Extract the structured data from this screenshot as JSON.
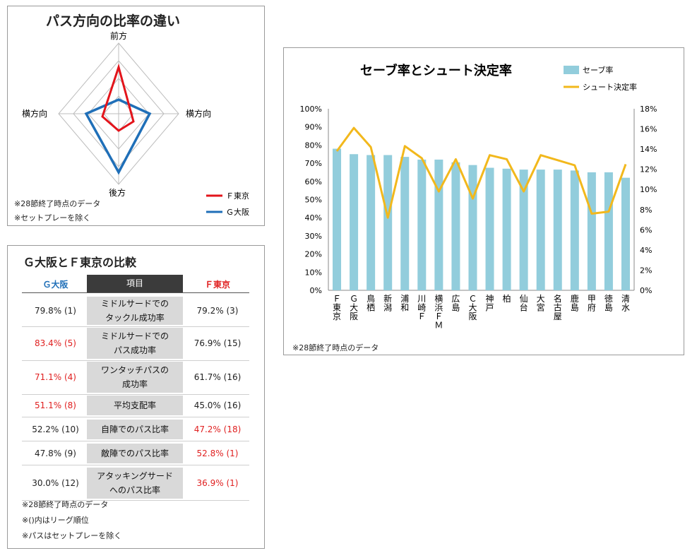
{
  "radar": {
    "title": "パス方向の比率の違い",
    "axes": [
      "前方",
      "横方向",
      "後方",
      "横方向"
    ],
    "notes": [
      "※28節終了時点のデータ",
      "※セットプレーを除く"
    ],
    "legend": [
      "Ｆ東京",
      "Ｇ大阪"
    ],
    "colors": {
      "fc_tokyo": "#e3141b",
      "g_osaka": "#1f6fb8"
    }
  },
  "compare": {
    "title": "Ｇ大阪とＦ東京の比較",
    "header": {
      "left": "Ｇ大阪",
      "center": "項目",
      "right": "Ｆ東京"
    },
    "rows": [
      {
        "left": "79.8% (1)",
        "item": "ミドルサードでの\nタックル成功率",
        "right": "79.2% (3)",
        "left_red": false,
        "right_red": false
      },
      {
        "left": "83.4% (5)",
        "item": "ミドルサードでの\nパス成功率",
        "right": "76.9% (15)",
        "left_red": true,
        "right_red": false
      },
      {
        "left": "71.1% (4)",
        "item": "ワンタッチパスの\n成功率",
        "right": "61.7% (16)",
        "left_red": true,
        "right_red": false
      },
      {
        "left": "51.1% (8)",
        "item": "平均支配率",
        "right": "45.0% (16)",
        "left_red": true,
        "right_red": false
      },
      {
        "left": "52.2% (10)",
        "item": "自陣でのパス比率",
        "right": "47.2% (18)",
        "left_red": false,
        "right_red": true
      },
      {
        "left": "47.8% (9)",
        "item": "敵陣でのパス比率",
        "right": "52.8% (1)",
        "left_red": false,
        "right_red": true
      },
      {
        "left": "30.0% (12)",
        "item": "アタッキングサード\nへのパス比率",
        "right": "36.9% (1)",
        "left_red": false,
        "right_red": true
      }
    ],
    "notes": [
      "※28節終了時点のデータ",
      "※()内はリーグ順位",
      "※パスはセットプレーを除く"
    ]
  },
  "chart_data": {
    "type": "bar",
    "title": "セーブ率とシュート決定率",
    "categories": [
      "Ｆ東京",
      "Ｇ大阪",
      "鳥栖",
      "新潟",
      "浦和",
      "川崎Ｆ",
      "横浜ＦＭ",
      "広島",
      "Ｃ大阪",
      "神戸",
      "柏",
      "仙台",
      "大宮",
      "名古屋",
      "鹿島",
      "甲府",
      "徳島",
      "清水"
    ],
    "series": [
      {
        "name": "セーブ率",
        "type": "bar",
        "axis": "left",
        "values": [
          78,
          75,
          74.5,
          74.5,
          73.5,
          72,
          72,
          70.5,
          69,
          67.5,
          67,
          66.5,
          66.5,
          66.5,
          66,
          65,
          65,
          62
        ],
        "color": "#92cddc"
      },
      {
        "name": "シュート決定率",
        "type": "line",
        "axis": "right",
        "values": [
          13.8,
          16.1,
          14.2,
          7.2,
          14.3,
          13.1,
          9.8,
          13.0,
          9.1,
          13.4,
          13.0,
          9.8,
          13.4,
          12.9,
          12.4,
          7.6,
          7.8,
          12.5
        ],
        "color": "#f2b81c"
      }
    ],
    "y_left": {
      "ylim": [
        0,
        100
      ],
      "ticks": [
        "0%",
        "10%",
        "20%",
        "30%",
        "40%",
        "50%",
        "60%",
        "70%",
        "80%",
        "90%",
        "100%"
      ]
    },
    "y_right": {
      "ylim": [
        0,
        18
      ],
      "ticks": [
        "0%",
        "2%",
        "4%",
        "6%",
        "8%",
        "10%",
        "12%",
        "14%",
        "16%",
        "18%"
      ]
    },
    "legend_position": "top-right",
    "note": "※28節終了時点のデータ"
  }
}
